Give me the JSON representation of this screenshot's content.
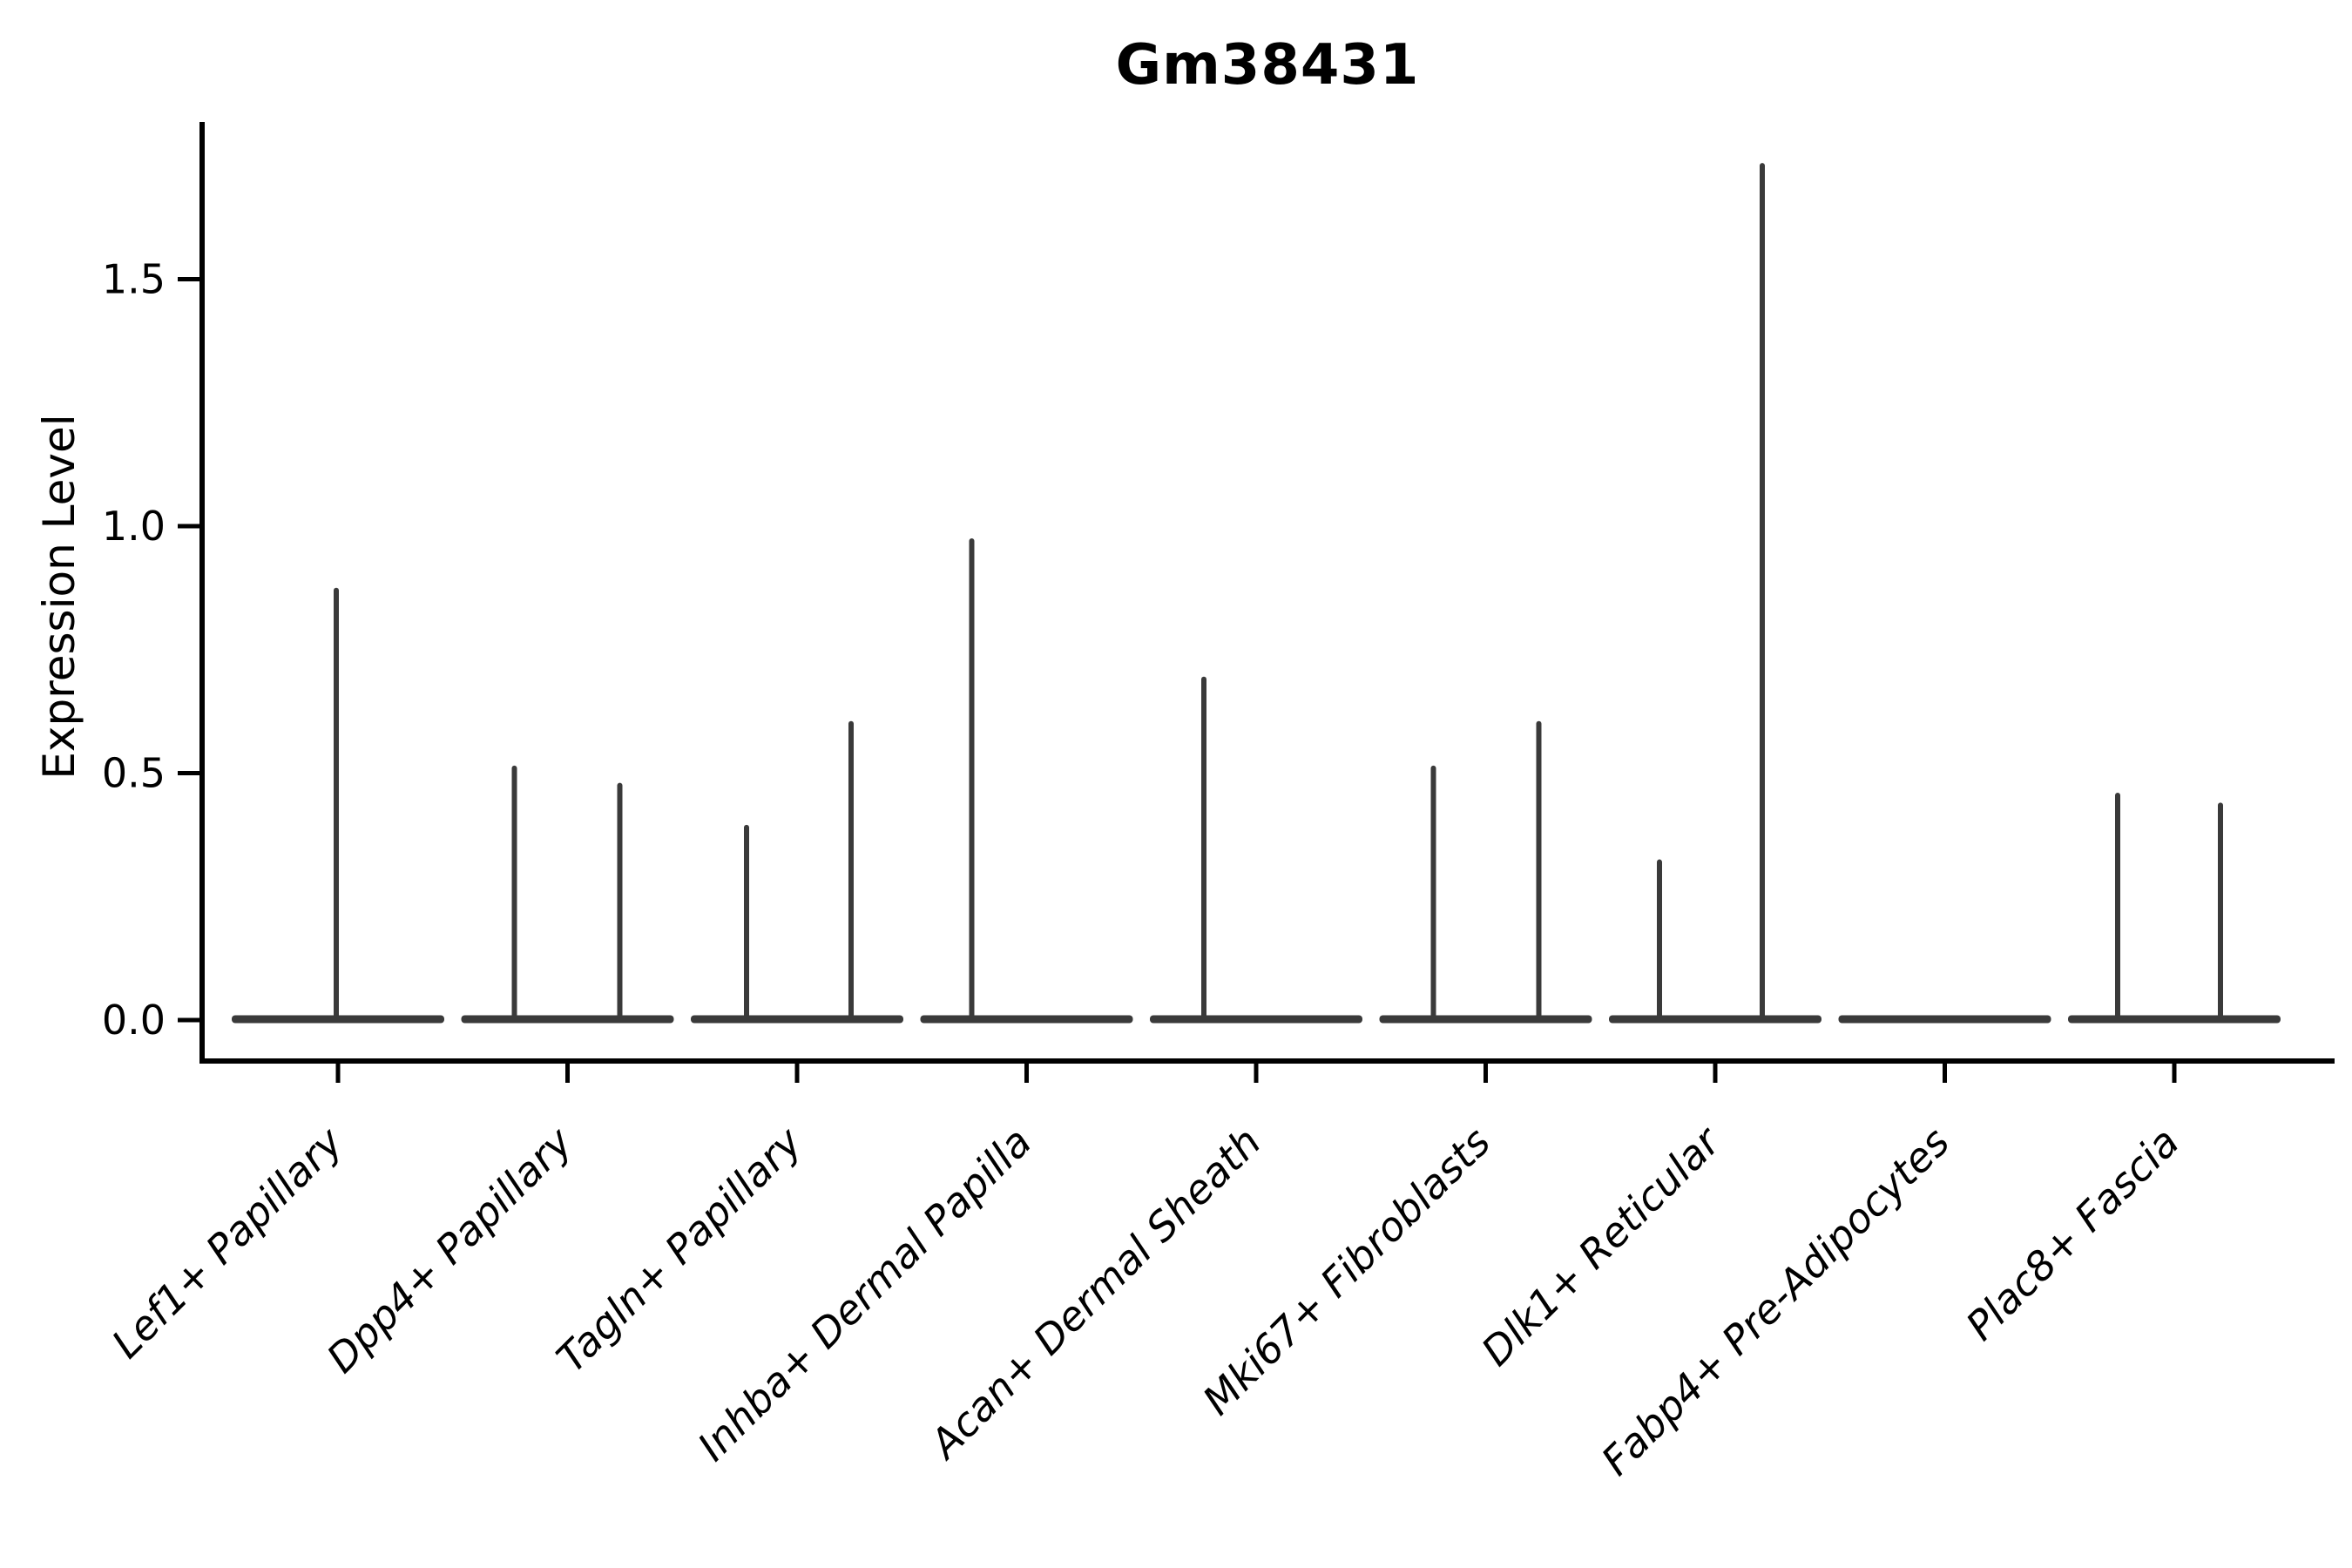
{
  "chart_data": {
    "type": "violin",
    "title": "Gm38431",
    "xlabel": "",
    "ylabel": "Expression Level",
    "y_tick_labels": [
      "0.0",
      "0.5",
      "1.0",
      "1.5"
    ],
    "y_tick_values": [
      0.0,
      0.5,
      1.0,
      1.5
    ],
    "ylim": [
      -0.083,
      1.818
    ],
    "grid": false,
    "legend": "none",
    "x_tick_label_style": "italic, rotated 45deg, anchored at tick",
    "categories": [
      "Lef1+ Papillary",
      "Dpp4+ Papillary",
      "Tagln+ Papillary",
      "Inhba+ Dermal Papilla",
      "Acan+ Dermal Sheath",
      "Mki67+ Fibroblasts",
      "Dlk1+ Reticular",
      "Fabp4+ Pre-Adipocytes",
      "Plac8+ Fascia"
    ],
    "violins": [
      {
        "category": "Lef1+ Papillary",
        "baseline_value": 0,
        "spikes": [
          {
            "offset": -2,
            "max_value": 0.87
          }
        ]
      },
      {
        "category": "Dpp4+ Papillary",
        "baseline_value": 0,
        "spikes": [
          {
            "offset": -61,
            "max_value": 0.51
          },
          {
            "offset": 60,
            "max_value": 0.475
          }
        ]
      },
      {
        "category": "Tagln+ Papillary",
        "baseline_value": 0,
        "spikes": [
          {
            "offset": -58,
            "max_value": 0.39
          },
          {
            "offset": 62,
            "max_value": 0.6
          }
        ]
      },
      {
        "category": "Inhba+ Dermal Papilla",
        "baseline_value": 0,
        "spikes": [
          {
            "offset": -63,
            "max_value": 0.97
          }
        ]
      },
      {
        "category": "Acan+ Dermal Sheath",
        "baseline_value": 0,
        "spikes": [
          {
            "offset": -60,
            "max_value": 0.69
          }
        ]
      },
      {
        "category": "Mki67+ Fibroblasts",
        "baseline_value": 0,
        "spikes": [
          {
            "offset": -60,
            "max_value": 0.51
          },
          {
            "offset": 61,
            "max_value": 0.6
          }
        ]
      },
      {
        "category": "Dlk1+ Reticular",
        "baseline_value": 0,
        "spikes": [
          {
            "offset": -64,
            "max_value": 0.32
          },
          {
            "offset": 54,
            "max_value": 1.73
          }
        ]
      },
      {
        "category": "Fabp4+ Pre-Adipocytes",
        "baseline_value": 0,
        "spikes": []
      },
      {
        "category": "Plac8+ Fascia",
        "baseline_value": 0,
        "spikes": [
          {
            "offset": -65,
            "max_value": 0.455
          },
          {
            "offset": 53,
            "max_value": 0.435
          }
        ]
      }
    ],
    "colors": {
      "violin_line": "#3A3A3A",
      "axis": "#000000",
      "text": "#000000",
      "background": "#FFFFFF"
    }
  }
}
